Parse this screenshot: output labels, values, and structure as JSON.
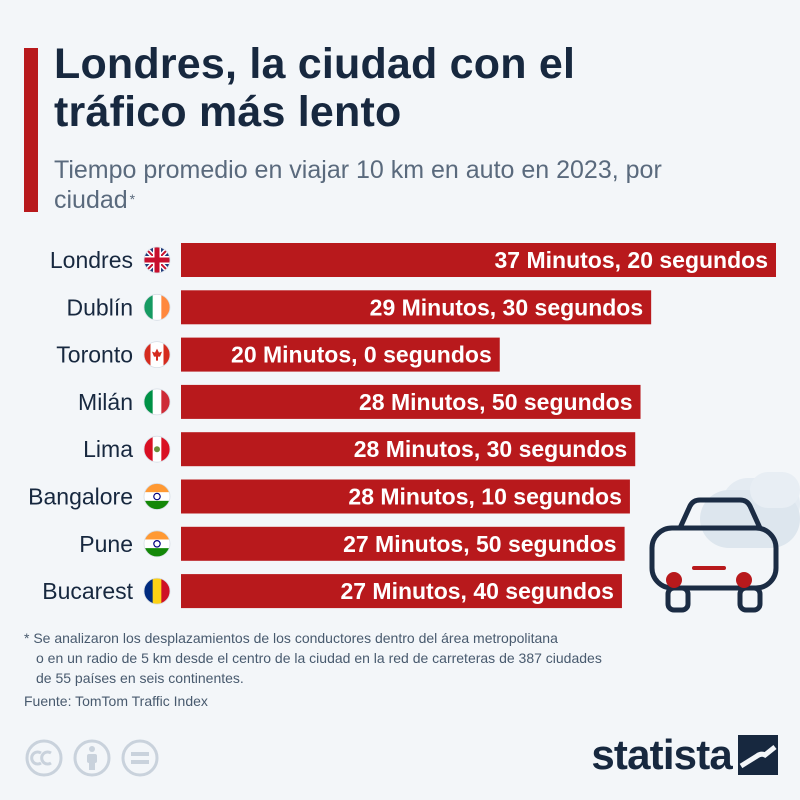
{
  "header": {
    "title": "Londres, la ciudad con el tráfico más lento",
    "subtitle": "Tiempo promedio en viajar 10 km en auto en 2023, por ciudad",
    "subtitle_marker": "*"
  },
  "chart_data": {
    "type": "bar",
    "orientation": "horizontal",
    "categories": [
      "Londres",
      "Dublín",
      "Toronto",
      "Milán",
      "Lima",
      "Bangalore",
      "Pune",
      "Bucarest"
    ],
    "values": [
      37.333,
      29.5,
      20.0,
      28.833,
      28.5,
      28.167,
      27.833,
      27.667
    ],
    "value_labels": [
      "37 Minutos, 20 segundos",
      "29 Minutos, 30 segundos",
      "20 Minutos, 0 segundos",
      "28 Minutos, 50 segundos",
      "28 Minutos, 30 segundos",
      "28 Minutos, 10 segundos",
      "27 Minutos, 50 segundos",
      "27 Minutos, 40 segundos"
    ],
    "flags": [
      "uk-flag",
      "ireland-flag",
      "canada-flag",
      "italy-flag",
      "peru-flag",
      "india-flag",
      "india-flag",
      "romania-flag"
    ],
    "bar_color": "#b8191c",
    "xlim": [
      0,
      37.333
    ],
    "grid": false,
    "legend": "none"
  },
  "footnote": {
    "lines": [
      "* Se analizaron los desplazamientos de los conductores dentro del área metropolitana",
      "o en un radio de 5 km desde el centro de la ciudad en la red de carreteras de 387 ciudades",
      "de 55 países en seis continentes."
    ]
  },
  "source": "Fuente: TomTom Traffic Index",
  "brand": {
    "name": "statista",
    "logo_icon": "statista-logo-icon"
  },
  "license_icons": [
    "creative-commons-icon",
    "attribution-icon",
    "no-derivatives-icon"
  ],
  "decor": {
    "illustration": "car-front-icon"
  },
  "colors": {
    "accent": "#b8191c",
    "title": "#17283f",
    "background": "#f3f6f9"
  }
}
